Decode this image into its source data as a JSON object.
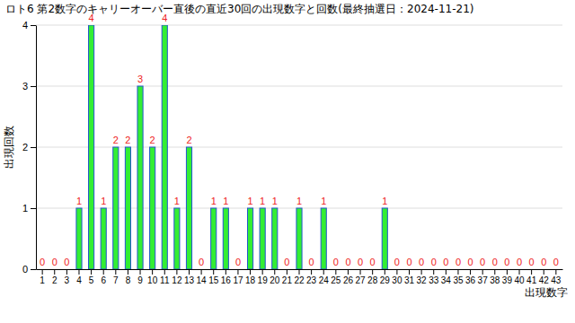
{
  "chart_data": {
    "type": "bar",
    "title": "ロト6 第2数字のキャリーオーバー直後の直近30回の出現数字と回数(最終抽選日：2024-11-21)",
    "x_label": "出現数字",
    "y_label": "出現回数",
    "categories": [
      "1",
      "2",
      "3",
      "4",
      "5",
      "6",
      "7",
      "8",
      "9",
      "10",
      "11",
      "12",
      "13",
      "14",
      "15",
      "16",
      "17",
      "18",
      "19",
      "20",
      "21",
      "22",
      "23",
      "24",
      "25",
      "26",
      "27",
      "28",
      "29",
      "30",
      "31",
      "32",
      "33",
      "34",
      "35",
      "36",
      "37",
      "38",
      "39",
      "40",
      "41",
      "42",
      "43"
    ],
    "values": [
      0,
      0,
      0,
      1,
      4,
      1,
      2,
      2,
      3,
      2,
      4,
      1,
      2,
      0,
      1,
      1,
      0,
      1,
      1,
      1,
      0,
      1,
      0,
      1,
      0,
      0,
      0,
      0,
      1,
      0,
      0,
      0,
      0,
      0,
      0,
      0,
      0,
      0,
      0,
      0,
      0,
      0,
      0
    ],
    "color": "#33ee33",
    "ylim": [
      0,
      4
    ],
    "yticks": [
      0,
      1,
      2,
      3,
      4
    ],
    "grid": true,
    "data_labels": true
  }
}
